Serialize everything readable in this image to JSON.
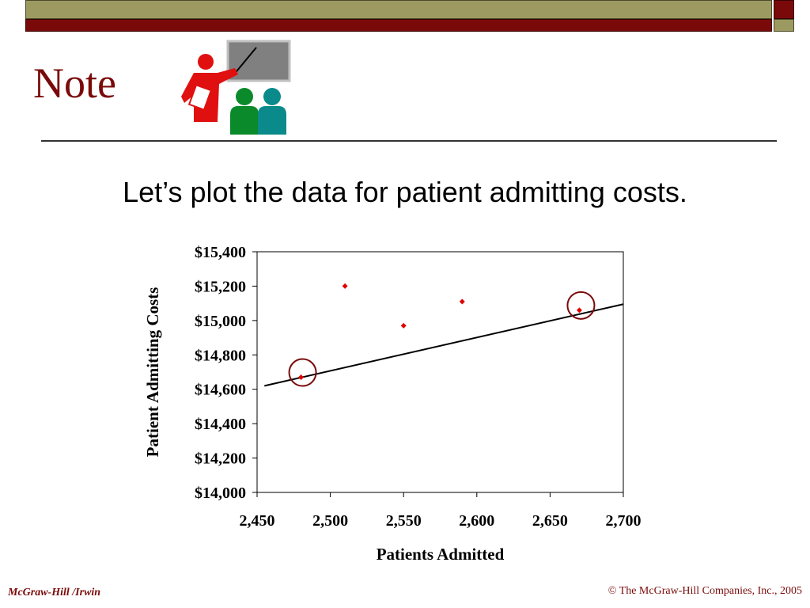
{
  "slide": {
    "title": "Note",
    "subtitle": "Let’s plot the data for patient admitting costs."
  },
  "footer": {
    "left": "McGraw-Hill  /Irwin",
    "right": "© The McGraw-Hill Companies, Inc., 2005"
  },
  "colors": {
    "title": "#7a0a0a",
    "band_olive": "#9c9a60",
    "band_red": "#7a0a0a",
    "points": "#e00000",
    "circles": "#7a0a0a"
  },
  "icons": [
    "presenter-clipart-icon"
  ],
  "chart_data": {
    "type": "scatter",
    "xlabel": "Patients Admitted",
    "ylabel": "Patient Admitting Costs",
    "xlim": [
      2450,
      2700
    ],
    "ylim": [
      14000,
      15400
    ],
    "x_ticks": [
      2450,
      2500,
      2550,
      2600,
      2650,
      2700
    ],
    "x_tick_labels": [
      "2,450",
      "2,500",
      "2,550",
      "2,600",
      "2,650",
      "2,700"
    ],
    "y_ticks": [
      14000,
      14200,
      14400,
      14600,
      14800,
      15000,
      15200,
      15400
    ],
    "y_tick_labels": [
      "$14,000",
      "$14,200",
      "$14,400",
      "$14,600",
      "$14,800",
      "$15,000",
      "$15,200",
      "$15,400"
    ],
    "grid": false,
    "legend": "none",
    "points": [
      {
        "x": 2480,
        "y": 14670
      },
      {
        "x": 2510,
        "y": 15200
      },
      {
        "x": 2550,
        "y": 14970
      },
      {
        "x": 2590,
        "y": 15110
      },
      {
        "x": 2670,
        "y": 15060
      }
    ],
    "highlighted_points": [
      {
        "x": 2480,
        "y": 14670
      },
      {
        "x": 2670,
        "y": 15060
      }
    ],
    "fit_line": {
      "x": [
        2455,
        2700
      ],
      "y": [
        14620,
        15095
      ]
    }
  }
}
